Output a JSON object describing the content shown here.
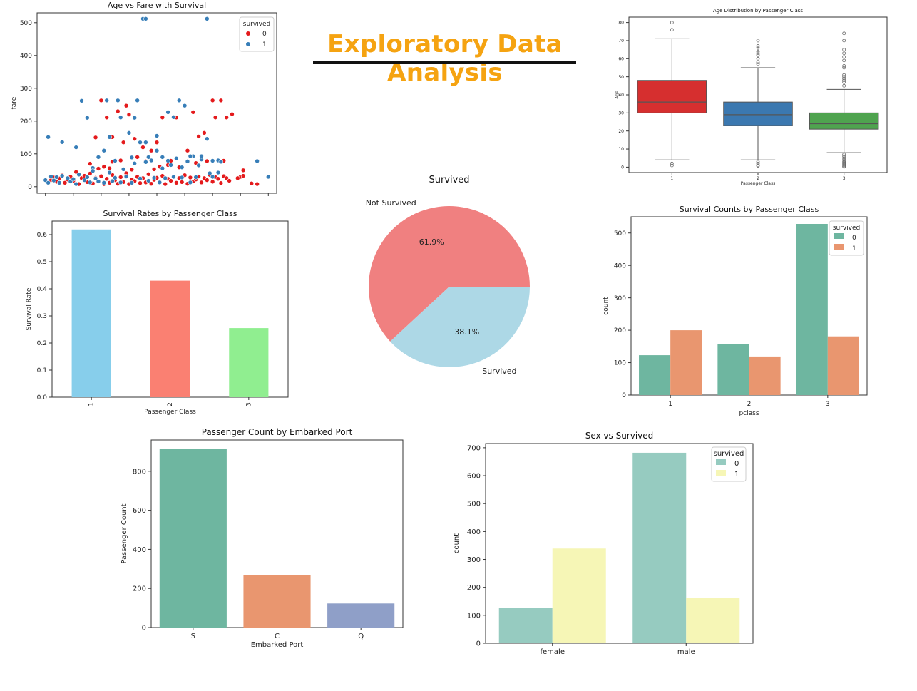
{
  "page": {
    "title": "Exploratory Data Analysis"
  },
  "chart_data": [
    {
      "id": "scatter",
      "type": "scatter",
      "title": "Age vs Fare with Survival",
      "xlabel": "",
      "ylabel": "fare",
      "xlim": [
        -3,
        83
      ],
      "ylim": [
        -20,
        530
      ],
      "xticks": [
        0,
        10,
        20,
        30,
        40,
        50,
        60,
        70,
        80
      ],
      "yticks": [
        0,
        100,
        200,
        300,
        400,
        500
      ],
      "legend": {
        "title": "survived",
        "position": "top-right",
        "entries": [
          {
            "label": "0",
            "color": "#e41a1c"
          },
          {
            "label": "1",
            "color": "#377eb8"
          }
        ]
      },
      "series": [
        {
          "name": "0",
          "color": "#e41a1c",
          "points": [
            [
              2,
              20
            ],
            [
              3,
              28
            ],
            [
              4,
              15
            ],
            [
              5,
              25
            ],
            [
              6,
              35
            ],
            [
              7,
              12
            ],
            [
              8,
              22
            ],
            [
              9,
              30
            ],
            [
              10,
              18
            ],
            [
              11,
              45
            ],
            [
              12,
              8
            ],
            [
              13,
              26
            ],
            [
              14,
              33
            ],
            [
              15,
              14
            ],
            [
              16,
              40
            ],
            [
              17,
              10
            ],
            [
              18,
              27
            ],
            [
              19,
              16
            ],
            [
              20,
              32
            ],
            [
              21,
              8
            ],
            [
              22,
              24
            ],
            [
              23,
              12
            ],
            [
              24,
              36
            ],
            [
              25,
              20
            ],
            [
              26,
              9
            ],
            [
              27,
              29
            ],
            [
              28,
              14
            ],
            [
              29,
              41
            ],
            [
              30,
              8
            ],
            [
              31,
              22
            ],
            [
              32,
              17
            ],
            [
              33,
              30
            ],
            [
              34,
              11
            ],
            [
              35,
              26
            ],
            [
              36,
              13
            ],
            [
              37,
              38
            ],
            [
              38,
              9
            ],
            [
              39,
              21
            ],
            [
              40,
              27
            ],
            [
              41,
              15
            ],
            [
              42,
              33
            ],
            [
              43,
              8
            ],
            [
              44,
              24
            ],
            [
              45,
              18
            ],
            [
              46,
              30
            ],
            [
              47,
              12
            ],
            [
              48,
              26
            ],
            [
              49,
              14
            ],
            [
              50,
              35
            ],
            [
              51,
              9
            ],
            [
              52,
              28
            ],
            [
              53,
              16
            ],
            [
              54,
              22
            ],
            [
              55,
              31
            ],
            [
              56,
              13
            ],
            [
              57,
              26
            ],
            [
              58,
              20
            ],
            [
              59,
              36
            ],
            [
              60,
              15
            ],
            [
              61,
              29
            ],
            [
              62,
              24
            ],
            [
              63,
              11
            ],
            [
              64,
              32
            ],
            [
              65,
              26
            ],
            [
              66,
              18
            ],
            [
              70,
              30
            ],
            [
              71,
              50
            ],
            [
              74,
              10
            ],
            [
              76,
              8
            ],
            [
              18,
              150
            ],
            [
              20,
              263
            ],
            [
              22,
              211
            ],
            [
              24,
              151
            ],
            [
              26,
              230
            ],
            [
              28,
              135
            ],
            [
              30,
              220
            ],
            [
              32,
              146
            ],
            [
              35,
              120
            ],
            [
              38,
              110
            ],
            [
              40,
              135
            ],
            [
              42,
              211
            ],
            [
              47,
              211
            ],
            [
              51,
              110
            ],
            [
              53,
              227
            ],
            [
              55,
              153
            ],
            [
              57,
              164
            ],
            [
              60,
              263
            ],
            [
              61,
              211
            ],
            [
              63,
              263
            ],
            [
              65,
              211
            ],
            [
              67,
              221
            ],
            [
              29,
              247
            ],
            [
              33,
              90
            ],
            [
              27,
              80
            ],
            [
              45,
              79
            ],
            [
              36,
              77
            ],
            [
              24,
              76
            ],
            [
              16,
              70
            ],
            [
              19,
              55
            ],
            [
              23,
              56
            ],
            [
              31,
              52
            ],
            [
              39,
              53
            ],
            [
              41,
              61
            ],
            [
              44,
              66
            ],
            [
              48,
              59
            ],
            [
              54,
              72
            ],
            [
              58,
              78
            ],
            [
              64,
              79
            ],
            [
              21,
              61
            ],
            [
              71,
              33
            ],
            [
              69,
              26
            ]
          ]
        },
        {
          "name": "1",
          "color": "#377eb8",
          "points": [
            [
              0,
              20
            ],
            [
              1,
              151
            ],
            [
              1,
              12
            ],
            [
              2,
              31
            ],
            [
              3,
              19
            ],
            [
              4,
              29
            ],
            [
              5,
              12
            ],
            [
              6,
              33
            ],
            [
              8,
              26
            ],
            [
              9,
              16
            ],
            [
              10,
              23
            ],
            [
              11,
              8
            ],
            [
              12,
              37
            ],
            [
              13,
              262
            ],
            [
              14,
              20
            ],
            [
              15,
              29
            ],
            [
              16,
              13
            ],
            [
              17,
              57
            ],
            [
              18,
              25
            ],
            [
              19,
              16
            ],
            [
              21,
              12
            ],
            [
              22,
              263
            ],
            [
              23,
              43
            ],
            [
              24,
              17
            ],
            [
              25,
              27
            ],
            [
              26,
              263
            ],
            [
              27,
              13
            ],
            [
              28,
              53
            ],
            [
              29,
              31
            ],
            [
              30,
              164
            ],
            [
              31,
              12
            ],
            [
              32,
              71
            ],
            [
              33,
              263
            ],
            [
              34,
              25
            ],
            [
              35,
              512
            ],
            [
              36,
              512
            ],
            [
              36,
              135
            ],
            [
              37,
              18
            ],
            [
              38,
              80
            ],
            [
              39,
              27
            ],
            [
              40,
              155
            ],
            [
              41,
              13
            ],
            [
              42,
              90
            ],
            [
              43,
              26
            ],
            [
              44,
              227
            ],
            [
              45,
              66
            ],
            [
              46,
              30
            ],
            [
              47,
              86
            ],
            [
              48,
              263
            ],
            [
              49,
              28
            ],
            [
              50,
              247
            ],
            [
              51,
              77
            ],
            [
              52,
              13
            ],
            [
              53,
              93
            ],
            [
              54,
              29
            ],
            [
              56,
              83
            ],
            [
              58,
              512
            ],
            [
              58,
              146
            ],
            [
              59,
              41
            ],
            [
              60,
              30
            ],
            [
              62,
              80
            ],
            [
              63,
              76
            ],
            [
              76,
              78
            ],
            [
              80,
              30
            ],
            [
              6,
              136
            ],
            [
              11,
              120
            ],
            [
              15,
              210
            ],
            [
              21,
              110
            ],
            [
              23,
              151
            ],
            [
              27,
              211
            ],
            [
              32,
              210
            ],
            [
              34,
              135
            ],
            [
              37,
              90
            ],
            [
              40,
              110
            ],
            [
              44,
              79
            ],
            [
              46,
              212
            ],
            [
              52,
              93
            ],
            [
              56,
              93
            ],
            [
              62,
              43
            ],
            [
              60,
              79
            ],
            [
              55,
              65
            ],
            [
              31,
              89
            ],
            [
              36,
              75
            ],
            [
              17,
              48
            ],
            [
              25,
              79
            ],
            [
              42,
              56
            ],
            [
              49,
              59
            ],
            [
              19,
              90
            ]
          ]
        }
      ]
    },
    {
      "id": "boxplot",
      "type": "box",
      "title": "Age Distribution by Passenger Class",
      "xlabel": "Passenger Class",
      "ylabel": "Age",
      "categories": [
        "1",
        "2",
        "3"
      ],
      "ylim": [
        -3,
        83
      ],
      "yticks": [
        0,
        10,
        20,
        30,
        40,
        50,
        60,
        70,
        80
      ],
      "boxes": [
        {
          "category": "1",
          "color": "#d62f2f",
          "q1": 30,
          "median": 36,
          "q3": 48,
          "whisker_low": 4,
          "whisker_high": 71,
          "outliers": [
            0.9,
            2,
            76,
            80
          ]
        },
        {
          "category": "2",
          "color": "#3b78b0",
          "q1": 23,
          "median": 29,
          "q3": 36,
          "whisker_low": 4,
          "whisker_high": 55,
          "outliers": [
            0.7,
            1,
            2,
            3,
            57,
            58,
            60,
            62,
            63,
            64,
            66,
            67,
            70
          ]
        },
        {
          "category": "3",
          "color": "#4fa34f",
          "q1": 21,
          "median": 24,
          "q3": 30,
          "whisker_low": 8,
          "whisker_high": 43,
          "outliers": [
            0.2,
            0.5,
            1,
            1.5,
            2,
            2.5,
            3,
            4,
            5,
            6,
            7,
            45,
            47,
            48,
            49,
            50,
            51,
            55,
            56,
            59,
            61,
            63,
            65,
            70,
            74
          ]
        }
      ]
    },
    {
      "id": "rates",
      "type": "bar",
      "title": "Survival Rates by Passenger Class",
      "xlabel": "Passenger Class",
      "ylabel": "Survival Rate",
      "categories": [
        "1",
        "2",
        "3"
      ],
      "values": [
        0.619,
        0.43,
        0.255
      ],
      "colors": [
        "#87ceeb",
        "#fa8072",
        "#90ee90"
      ],
      "ylim": [
        0,
        0.65
      ],
      "yticks": [
        0.0,
        0.1,
        0.2,
        0.3,
        0.4,
        0.5,
        0.6
      ]
    },
    {
      "id": "pie",
      "type": "pie",
      "title": "Survived",
      "slices": [
        {
          "label": "Not Survived",
          "value": 61.9,
          "pct_label": "61.9%",
          "color": "#f08080"
        },
        {
          "label": "Survived",
          "value": 38.1,
          "pct_label": "38.1%",
          "color": "#add8e6"
        }
      ]
    },
    {
      "id": "counts",
      "type": "bar",
      "title": "Survival Counts by Passenger Class",
      "xlabel": "pclass",
      "ylabel": "count",
      "categories": [
        "1",
        "2",
        "3"
      ],
      "legend": {
        "title": "survived",
        "position": "top-right"
      },
      "series": [
        {
          "name": "0",
          "color": "#6eb6a0",
          "values": [
            123,
            158,
            528
          ]
        },
        {
          "name": "1",
          "color": "#e9966f",
          "values": [
            200,
            119,
            181
          ]
        }
      ],
      "ylim": [
        0,
        550
      ],
      "yticks": [
        0,
        100,
        200,
        300,
        400,
        500
      ]
    },
    {
      "id": "embarked",
      "type": "bar",
      "title": "Passenger Count by Embarked Port",
      "xlabel": "Embarked Port",
      "ylabel": "Passenger Count",
      "categories": [
        "S",
        "C",
        "Q"
      ],
      "values": [
        914,
        270,
        123
      ],
      "colors": [
        "#6eb6a0",
        "#e9966f",
        "#8f9fc8"
      ],
      "ylim": [
        0,
        960
      ],
      "yticks": [
        0,
        200,
        400,
        600,
        800
      ]
    },
    {
      "id": "sex",
      "type": "bar",
      "title": "Sex vs Survived",
      "xlabel": "",
      "ylabel": "count",
      "categories": [
        "female",
        "male"
      ],
      "legend": {
        "title": "survived",
        "position": "top-right"
      },
      "series": [
        {
          "name": "0",
          "color": "#96cbc0",
          "values": [
            127,
            682
          ]
        },
        {
          "name": "1",
          "color": "#f6f6b6",
          "values": [
            339,
            161
          ]
        }
      ],
      "ylim": [
        0,
        715
      ],
      "yticks": [
        0,
        100,
        200,
        300,
        400,
        500,
        600,
        700
      ]
    }
  ]
}
